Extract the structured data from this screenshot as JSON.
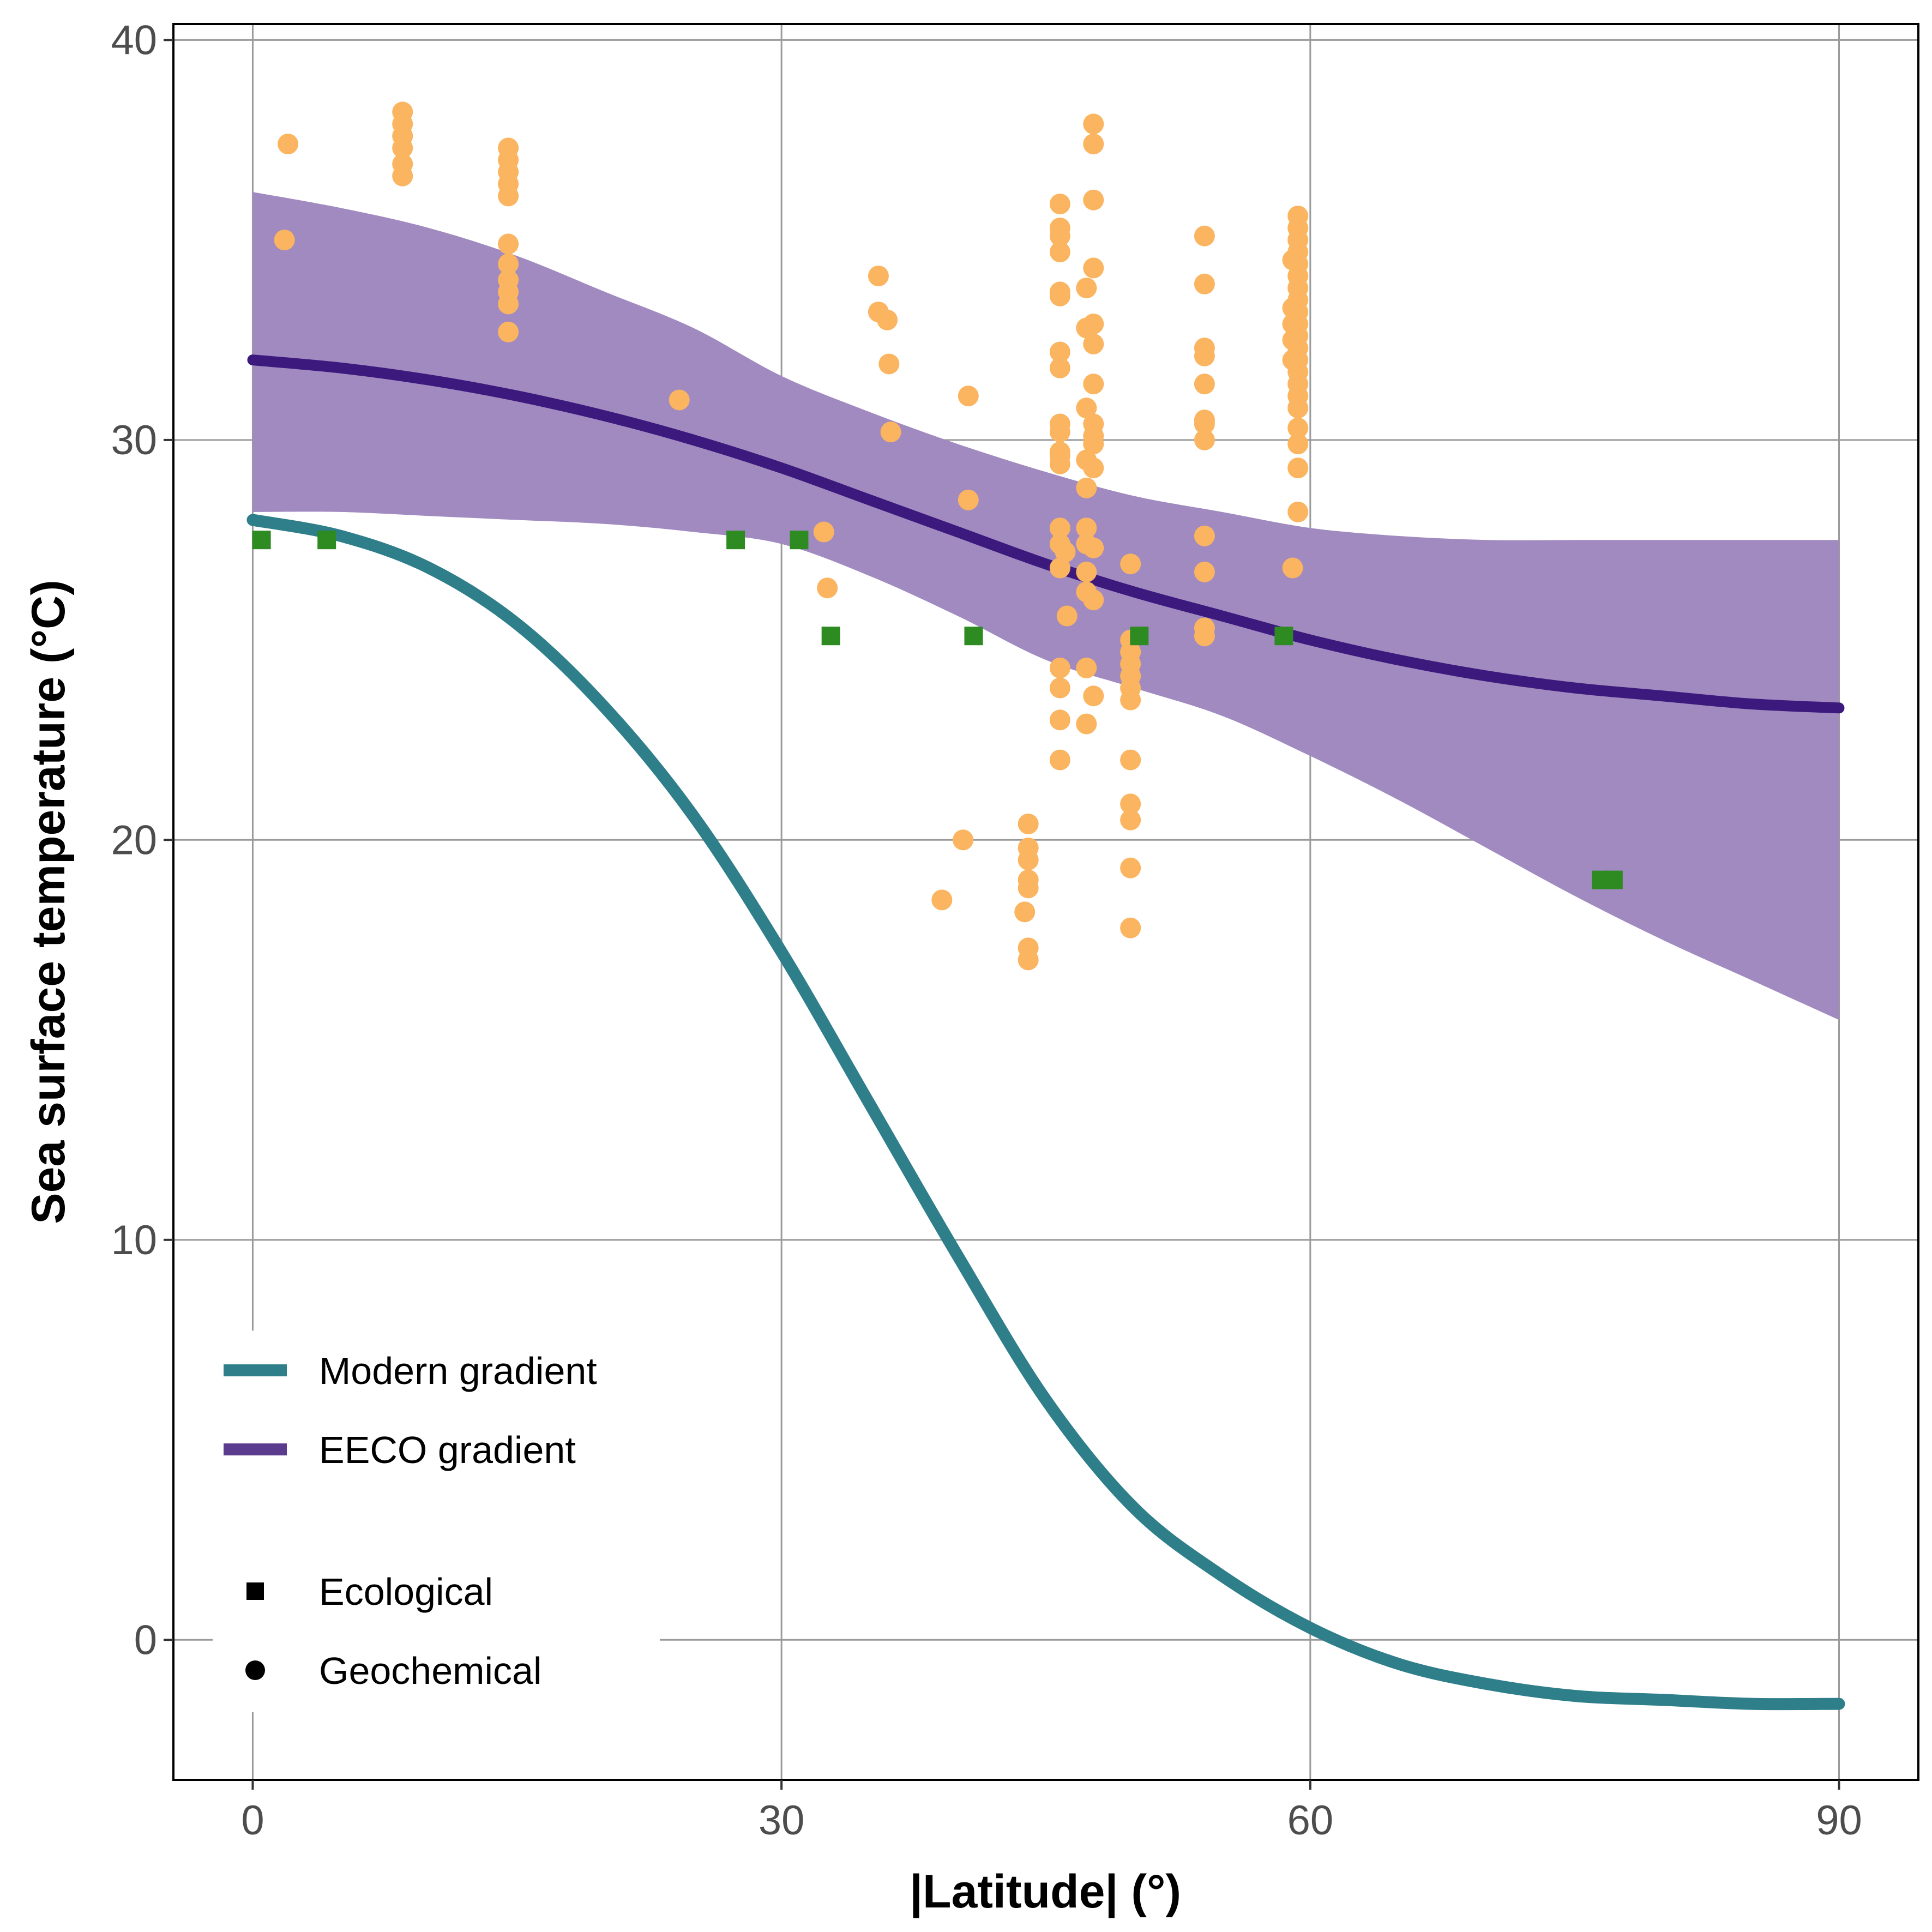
{
  "chart_data": {
    "type": "scatter",
    "xlabel": "|Latitude| (°)",
    "ylabel": "Sea surface temperature (°C)",
    "xlim": [
      -4.5,
      94.5
    ],
    "ylim": [
      -3.5,
      40.4
    ],
    "x_ticks": [
      0,
      30,
      60,
      90
    ],
    "y_ticks": [
      0,
      10,
      20,
      30,
      40
    ],
    "grid": true,
    "legend_position": "bottom-left",
    "colors": {
      "modern": "#2e7f8a",
      "eeco": "#3c1a7d",
      "band": "#a08ac0",
      "geochemical": "#fbb45f",
      "ecological": "#2e8b22"
    },
    "series": [
      {
        "name": "Modern gradient",
        "type": "line",
        "x": [
          0,
          5,
          10,
          15,
          20,
          25,
          30,
          35,
          40,
          45,
          50,
          55,
          60,
          65,
          70,
          75,
          80,
          85,
          90
        ],
        "y": [
          28,
          27.6,
          26.8,
          25.4,
          23.3,
          20.6,
          17.2,
          13.4,
          9.6,
          6.0,
          3.3,
          1.6,
          0.3,
          -0.6,
          -1.1,
          -1.4,
          -1.5,
          -1.6,
          -1.6
        ]
      },
      {
        "name": "EECO gradient",
        "type": "line",
        "x": [
          0,
          5,
          10,
          15,
          20,
          25,
          30,
          35,
          40,
          45,
          50,
          55,
          60,
          65,
          70,
          75,
          80,
          85,
          90
        ],
        "y": [
          32,
          31.8,
          31.5,
          31.1,
          30.6,
          30.0,
          29.3,
          28.5,
          27.7,
          26.9,
          26.2,
          25.6,
          25.0,
          24.5,
          24.1,
          23.8,
          23.6,
          23.4,
          23.3
        ],
        "band_upper": [
          36.2,
          35.8,
          35.3,
          34.6,
          33.7,
          32.8,
          31.6,
          30.7,
          29.9,
          29.2,
          28.6,
          28.2,
          27.8,
          27.6,
          27.5,
          27.5,
          27.5,
          27.5,
          27.5
        ],
        "band_lower": [
          28.2,
          28.2,
          28.1,
          28.0,
          27.9,
          27.7,
          27.4,
          26.6,
          25.6,
          24.5,
          23.8,
          23.1,
          22.1,
          21.0,
          19.8,
          18.6,
          17.5,
          16.5,
          15.5
        ]
      },
      {
        "name": "Ecological",
        "type": "scatter",
        "marker": "square",
        "points": [
          [
            0.5,
            27.5
          ],
          [
            4.2,
            27.5
          ],
          [
            27.4,
            27.5
          ],
          [
            31.0,
            27.5
          ],
          [
            32.8,
            25.1
          ],
          [
            40.9,
            25.1
          ],
          [
            50.3,
            25.1
          ],
          [
            58.5,
            25.1
          ],
          [
            76.5,
            19.0
          ],
          [
            77.2,
            19.0
          ]
        ]
      },
      {
        "name": "Geochemical",
        "type": "scatter",
        "marker": "circle",
        "points": [
          [
            2.0,
            37.4
          ],
          [
            1.8,
            35.0
          ],
          [
            8.5,
            38.2
          ],
          [
            8.5,
            37.9
          ],
          [
            8.5,
            37.6
          ],
          [
            8.5,
            37.3
          ],
          [
            8.5,
            36.9
          ],
          [
            8.5,
            36.6
          ],
          [
            14.5,
            37.3
          ],
          [
            14.5,
            37.0
          ],
          [
            14.5,
            36.7
          ],
          [
            14.5,
            36.4
          ],
          [
            14.5,
            36.1
          ],
          [
            14.5,
            34.9
          ],
          [
            14.5,
            34.4
          ],
          [
            14.5,
            34.0
          ],
          [
            14.5,
            33.7
          ],
          [
            14.5,
            33.4
          ],
          [
            14.5,
            32.7
          ],
          [
            24.2,
            31.0
          ],
          [
            32.4,
            27.7
          ],
          [
            32.6,
            26.3
          ],
          [
            35.5,
            34.1
          ],
          [
            35.5,
            33.2
          ],
          [
            36.0,
            33.0
          ],
          [
            36.1,
            31.9
          ],
          [
            36.2,
            30.2
          ],
          [
            39.1,
            18.5
          ],
          [
            40.3,
            20.0
          ],
          [
            40.6,
            31.1
          ],
          [
            40.6,
            28.5
          ],
          [
            43.8,
            18.2
          ],
          [
            44.0,
            17.3
          ],
          [
            44.0,
            17.0
          ],
          [
            44.0,
            18.8
          ],
          [
            44.0,
            19.0
          ],
          [
            44.0,
            19.5
          ],
          [
            44.0,
            19.8
          ],
          [
            44.0,
            20.4
          ],
          [
            45.8,
            35.9
          ],
          [
            45.8,
            35.3
          ],
          [
            45.8,
            35.1
          ],
          [
            45.8,
            34.7
          ],
          [
            45.8,
            33.7
          ],
          [
            45.8,
            33.6
          ],
          [
            45.8,
            32.2
          ],
          [
            45.8,
            31.8
          ],
          [
            45.8,
            30.4
          ],
          [
            45.8,
            30.2
          ],
          [
            45.8,
            29.7
          ],
          [
            45.8,
            29.6
          ],
          [
            45.8,
            29.4
          ],
          [
            45.8,
            27.8
          ],
          [
            45.8,
            27.4
          ],
          [
            45.8,
            26.8
          ],
          [
            45.8,
            24.3
          ],
          [
            45.8,
            23.8
          ],
          [
            45.8,
            23.0
          ],
          [
            45.8,
            22.0
          ],
          [
            46.1,
            27.2
          ],
          [
            46.2,
            25.6
          ],
          [
            47.3,
            33.8
          ],
          [
            47.3,
            32.8
          ],
          [
            47.3,
            30.8
          ],
          [
            47.3,
            29.5
          ],
          [
            47.3,
            28.8
          ],
          [
            47.3,
            27.8
          ],
          [
            47.3,
            27.4
          ],
          [
            47.3,
            26.7
          ],
          [
            47.3,
            26.2
          ],
          [
            47.3,
            24.3
          ],
          [
            47.3,
            22.9
          ],
          [
            47.7,
            37.9
          ],
          [
            47.7,
            37.4
          ],
          [
            47.7,
            36.0
          ],
          [
            47.7,
            34.3
          ],
          [
            47.7,
            32.9
          ],
          [
            47.7,
            32.4
          ],
          [
            47.7,
            31.4
          ],
          [
            47.7,
            30.4
          ],
          [
            47.7,
            30.1
          ],
          [
            47.7,
            29.9
          ],
          [
            47.7,
            29.3
          ],
          [
            47.7,
            27.3
          ],
          [
            47.7,
            26.0
          ],
          [
            47.7,
            23.6
          ],
          [
            49.8,
            26.9
          ],
          [
            49.8,
            25.0
          ],
          [
            49.8,
            24.7
          ],
          [
            49.8,
            24.4
          ],
          [
            49.8,
            24.1
          ],
          [
            49.8,
            23.8
          ],
          [
            49.8,
            23.5
          ],
          [
            49.8,
            22.0
          ],
          [
            49.8,
            20.9
          ],
          [
            49.8,
            20.5
          ],
          [
            49.8,
            19.3
          ],
          [
            49.8,
            17.8
          ],
          [
            54.0,
            35.1
          ],
          [
            54.0,
            33.9
          ],
          [
            54.0,
            32.3
          ],
          [
            54.0,
            32.1
          ],
          [
            54.0,
            31.4
          ],
          [
            54.0,
            30.5
          ],
          [
            54.0,
            30.4
          ],
          [
            54.0,
            30.0
          ],
          [
            54.0,
            27.6
          ],
          [
            54.0,
            26.7
          ],
          [
            54.0,
            25.3
          ],
          [
            54.0,
            25.1
          ],
          [
            59.0,
            34.5
          ],
          [
            59.0,
            33.3
          ],
          [
            59.0,
            32.9
          ],
          [
            59.0,
            32.5
          ],
          [
            59.0,
            32.0
          ],
          [
            59.0,
            26.8
          ],
          [
            59.3,
            35.6
          ],
          [
            59.3,
            35.3
          ],
          [
            59.3,
            35.0
          ],
          [
            59.3,
            34.7
          ],
          [
            59.3,
            34.4
          ],
          [
            59.3,
            34.1
          ],
          [
            59.3,
            33.8
          ],
          [
            59.3,
            33.5
          ],
          [
            59.3,
            33.2
          ],
          [
            59.3,
            32.9
          ],
          [
            59.3,
            32.6
          ],
          [
            59.3,
            32.3
          ],
          [
            59.3,
            32.0
          ],
          [
            59.3,
            31.7
          ],
          [
            59.3,
            31.4
          ],
          [
            59.3,
            31.1
          ],
          [
            59.3,
            30.8
          ],
          [
            59.3,
            30.3
          ],
          [
            59.3,
            29.9
          ],
          [
            59.3,
            29.3
          ],
          [
            59.3,
            28.2
          ]
        ]
      }
    ],
    "legend": [
      {
        "label": "Modern gradient",
        "symbol": "line",
        "color": "#2e7f8a"
      },
      {
        "label": "EECO gradient",
        "symbol": "line",
        "color": "#5b3b8e"
      },
      {
        "label": "Ecological",
        "symbol": "square",
        "color": "#000000"
      },
      {
        "label": "Geochemical",
        "symbol": "circle",
        "color": "#000000"
      }
    ]
  }
}
